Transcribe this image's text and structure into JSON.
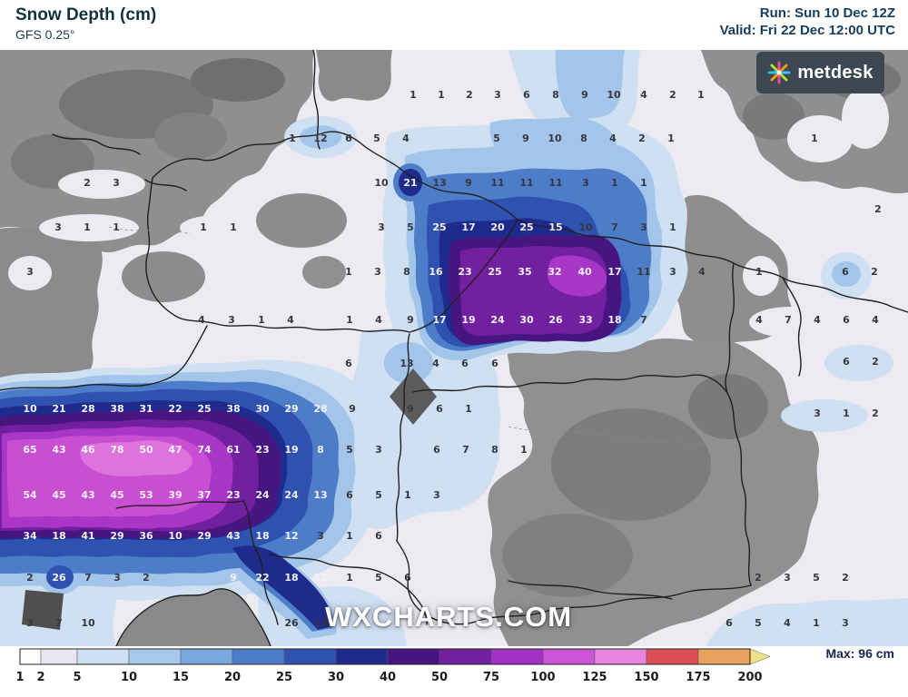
{
  "header": {
    "title": "Snow Depth (cm)",
    "model": "GFS 0.25°",
    "run_label": "Run: Sun 10 Dec 12Z",
    "valid_label": "Valid: Fri 22 Dec 12:00 UTC"
  },
  "branding": {
    "logo_text": "metdesk",
    "watermark": "WXCHARTS.COM"
  },
  "legend": {
    "title": "Snow Depth (cm)",
    "units": "cm",
    "max_label": "Max: 96 cm",
    "ticks": [
      "1",
      "2",
      "5",
      "10",
      "15",
      "20",
      "25",
      "30",
      "40",
      "50",
      "75",
      "100",
      "125",
      "150",
      "175",
      "200"
    ],
    "boundaries": [
      22,
      45,
      85,
      142,
      199,
      256,
      313,
      370,
      427,
      484,
      541,
      598,
      655,
      712,
      769,
      826
    ],
    "arrow_tip": 848,
    "segment_colors": [
      "#fefefe",
      "#eae6f1",
      "#cedff2",
      "#a6c8ea",
      "#7aa8dd",
      "#4d7cc9",
      "#2f51b0",
      "#1f2b8c",
      "#471580",
      "#721fa0",
      "#a231c6",
      "#cb55d5",
      "#e784de",
      "#dc4f57",
      "#e8a25e"
    ],
    "arrow_color": "#efe387"
  },
  "map": {
    "type": "filled-contour snow depth field, Central Europe",
    "values": [
      [
        455,
        104,
        "1",
        0
      ],
      [
        486,
        104,
        "1",
        0
      ],
      [
        517,
        104,
        "2",
        0
      ],
      [
        548,
        104,
        "3",
        0
      ],
      [
        580,
        104,
        "6",
        0
      ],
      [
        612,
        104,
        "8",
        0
      ],
      [
        644,
        104,
        "9",
        0
      ],
      [
        676,
        104,
        "10",
        0
      ],
      [
        709,
        104,
        "4",
        0
      ],
      [
        741,
        104,
        "2",
        0
      ],
      [
        772,
        104,
        "1",
        0
      ],
      [
        322,
        152,
        "1",
        0
      ],
      [
        353,
        152,
        "12",
        0
      ],
      [
        384,
        152,
        "6",
        0
      ],
      [
        415,
        152,
        "5",
        0
      ],
      [
        447,
        152,
        "4",
        0
      ],
      [
        547,
        152,
        "5",
        0
      ],
      [
        579,
        152,
        "9",
        0
      ],
      [
        611,
        152,
        "10",
        0
      ],
      [
        643,
        152,
        "8",
        0
      ],
      [
        675,
        152,
        "4",
        0
      ],
      [
        707,
        152,
        "2",
        0
      ],
      [
        739,
        152,
        "1",
        0
      ],
      [
        897,
        152,
        "1",
        0
      ],
      [
        96,
        201,
        "2",
        0
      ],
      [
        128,
        201,
        "3",
        0
      ],
      [
        420,
        201,
        "10",
        0
      ],
      [
        452,
        201,
        "21",
        1
      ],
      [
        484,
        201,
        "13",
        0
      ],
      [
        516,
        201,
        "9",
        0
      ],
      [
        548,
        201,
        "11",
        0
      ],
      [
        580,
        201,
        "11",
        0
      ],
      [
        612,
        201,
        "11",
        0
      ],
      [
        645,
        201,
        "3",
        0
      ],
      [
        677,
        201,
        "1",
        0
      ],
      [
        709,
        201,
        "1",
        0
      ],
      [
        64,
        250,
        "3",
        0
      ],
      [
        96,
        250,
        "1",
        0
      ],
      [
        128,
        250,
        "1",
        0
      ],
      [
        224,
        250,
        "1",
        0
      ],
      [
        257,
        250,
        "1",
        0
      ],
      [
        420,
        250,
        "3",
        0
      ],
      [
        452,
        250,
        "5",
        0
      ],
      [
        484,
        250,
        "25",
        1
      ],
      [
        516,
        250,
        "17",
        1
      ],
      [
        548,
        250,
        "20",
        1
      ],
      [
        580,
        250,
        "25",
        1
      ],
      [
        612,
        250,
        "15",
        1
      ],
      [
        645,
        250,
        "10",
        0
      ],
      [
        677,
        250,
        "7",
        0
      ],
      [
        709,
        250,
        "3",
        0
      ],
      [
        741,
        250,
        "1",
        0
      ],
      [
        967,
        230,
        "2",
        0
      ],
      [
        33,
        299,
        "3",
        0
      ],
      [
        384,
        299,
        "1",
        0
      ],
      [
        416,
        299,
        "3",
        0
      ],
      [
        448,
        299,
        "8",
        0
      ],
      [
        480,
        299,
        "16",
        1
      ],
      [
        512,
        299,
        "23",
        1
      ],
      [
        545,
        299,
        "25",
        1
      ],
      [
        578,
        299,
        "35",
        1
      ],
      [
        611,
        299,
        "32",
        1
      ],
      [
        644,
        299,
        "40",
        1
      ],
      [
        677,
        299,
        "17",
        1
      ],
      [
        709,
        299,
        "11",
        0
      ],
      [
        741,
        299,
        "3",
        0
      ],
      [
        773,
        299,
        "4",
        0
      ],
      [
        836,
        299,
        "1",
        0
      ],
      [
        931,
        299,
        "6",
        0
      ],
      [
        963,
        299,
        "2",
        0
      ],
      [
        222,
        352,
        "4",
        0
      ],
      [
        255,
        352,
        "3",
        0
      ],
      [
        288,
        352,
        "1",
        0
      ],
      [
        320,
        352,
        "4",
        0
      ],
      [
        385,
        352,
        "1",
        0
      ],
      [
        417,
        352,
        "4",
        0
      ],
      [
        452,
        352,
        "9",
        0
      ],
      [
        484,
        352,
        "17",
        1
      ],
      [
        516,
        352,
        "19",
        1
      ],
      [
        548,
        352,
        "24",
        1
      ],
      [
        580,
        352,
        "30",
        1
      ],
      [
        612,
        352,
        "26",
        1
      ],
      [
        645,
        352,
        "33",
        1
      ],
      [
        677,
        352,
        "18",
        1
      ],
      [
        709,
        352,
        "7",
        0
      ],
      [
        836,
        352,
        "4",
        0
      ],
      [
        868,
        352,
        "7",
        0
      ],
      [
        900,
        352,
        "4",
        0
      ],
      [
        932,
        352,
        "6",
        0
      ],
      [
        964,
        352,
        "4",
        0
      ],
      [
        384,
        400,
        "6",
        0
      ],
      [
        448,
        400,
        "13",
        0
      ],
      [
        480,
        400,
        "4",
        0
      ],
      [
        512,
        400,
        "6",
        0
      ],
      [
        545,
        400,
        "6",
        0
      ],
      [
        932,
        398,
        "6",
        0
      ],
      [
        964,
        398,
        "2",
        0
      ],
      [
        33,
        450,
        "10",
        1
      ],
      [
        65,
        450,
        "21",
        1
      ],
      [
        97,
        450,
        "28",
        1
      ],
      [
        129,
        450,
        "38",
        1
      ],
      [
        161,
        450,
        "31",
        1
      ],
      [
        193,
        450,
        "22",
        1
      ],
      [
        225,
        450,
        "25",
        1
      ],
      [
        257,
        450,
        "38",
        1
      ],
      [
        289,
        450,
        "30",
        1
      ],
      [
        321,
        450,
        "29",
        1
      ],
      [
        353,
        450,
        "28",
        1
      ],
      [
        388,
        450,
        "9",
        0
      ],
      [
        452,
        450,
        "9",
        0
      ],
      [
        484,
        450,
        "6",
        0
      ],
      [
        516,
        450,
        "1",
        0
      ],
      [
        900,
        455,
        "3",
        0
      ],
      [
        932,
        455,
        "1",
        0
      ],
      [
        964,
        455,
        "2",
        0
      ],
      [
        33,
        495,
        "65",
        1
      ],
      [
        65,
        495,
        "43",
        1
      ],
      [
        97,
        495,
        "46",
        1
      ],
      [
        129,
        495,
        "78",
        1
      ],
      [
        161,
        495,
        "50",
        1
      ],
      [
        193,
        495,
        "47",
        1
      ],
      [
        225,
        495,
        "74",
        1
      ],
      [
        257,
        495,
        "61",
        1
      ],
      [
        289,
        495,
        "23",
        1
      ],
      [
        321,
        495,
        "19",
        1
      ],
      [
        353,
        495,
        "8",
        1
      ],
      [
        385,
        495,
        "5",
        0
      ],
      [
        417,
        495,
        "3",
        0
      ],
      [
        481,
        495,
        "6",
        0
      ],
      [
        513,
        495,
        "7",
        0
      ],
      [
        545,
        495,
        "8",
        0
      ],
      [
        577,
        495,
        "1",
        0
      ],
      [
        33,
        545,
        "54",
        1
      ],
      [
        65,
        545,
        "45",
        1
      ],
      [
        97,
        545,
        "43",
        1
      ],
      [
        129,
        545,
        "45",
        1
      ],
      [
        161,
        545,
        "53",
        1
      ],
      [
        193,
        545,
        "39",
        1
      ],
      [
        225,
        545,
        "37",
        1
      ],
      [
        257,
        545,
        "23",
        1
      ],
      [
        289,
        545,
        "24",
        1
      ],
      [
        321,
        545,
        "24",
        1
      ],
      [
        353,
        545,
        "13",
        1
      ],
      [
        385,
        545,
        "6",
        0
      ],
      [
        417,
        545,
        "5",
        0
      ],
      [
        449,
        545,
        "1",
        0
      ],
      [
        481,
        545,
        "3",
        0
      ],
      [
        33,
        590,
        "34",
        1
      ],
      [
        65,
        590,
        "18",
        1
      ],
      [
        97,
        590,
        "41",
        1
      ],
      [
        129,
        590,
        "29",
        1
      ],
      [
        161,
        590,
        "36",
        1
      ],
      [
        193,
        590,
        "10",
        1
      ],
      [
        225,
        590,
        "29",
        1
      ],
      [
        257,
        590,
        "43",
        1
      ],
      [
        289,
        590,
        "18",
        1
      ],
      [
        321,
        590,
        "12",
        1
      ],
      [
        353,
        590,
        "3",
        0
      ],
      [
        385,
        590,
        "1",
        0
      ],
      [
        417,
        590,
        "6",
        0
      ],
      [
        33,
        636,
        "2",
        0
      ],
      [
        65,
        636,
        "26",
        1
      ],
      [
        97,
        636,
        "7",
        0
      ],
      [
        129,
        636,
        "3",
        0
      ],
      [
        161,
        636,
        "2",
        0
      ],
      [
        257,
        636,
        "9",
        1
      ],
      [
        289,
        636,
        "22",
        1
      ],
      [
        321,
        636,
        "18",
        1
      ],
      [
        353,
        636,
        "12",
        1
      ],
      [
        385,
        636,
        "1",
        0
      ],
      [
        417,
        636,
        "5",
        0
      ],
      [
        449,
        636,
        "6",
        0
      ],
      [
        835,
        636,
        "2",
        0
      ],
      [
        867,
        636,
        "3",
        0
      ],
      [
        899,
        636,
        "5",
        0
      ],
      [
        931,
        636,
        "2",
        0
      ],
      [
        33,
        686,
        "3",
        0
      ],
      [
        65,
        686,
        "7",
        0
      ],
      [
        97,
        686,
        "10",
        0
      ],
      [
        321,
        686,
        "26",
        0
      ],
      [
        353,
        686,
        "13",
        0
      ],
      [
        803,
        686,
        "6",
        0
      ],
      [
        835,
        686,
        "5",
        0
      ],
      [
        867,
        686,
        "4",
        0
      ],
      [
        899,
        686,
        "1",
        0
      ],
      [
        931,
        686,
        "3",
        0
      ]
    ]
  }
}
